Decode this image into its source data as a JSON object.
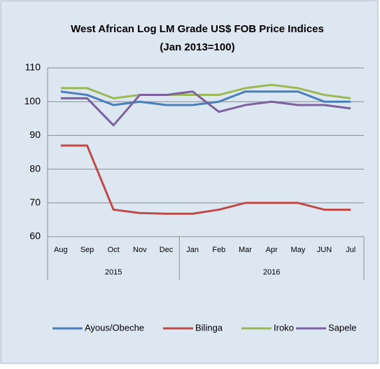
{
  "chart_data": {
    "type": "line",
    "title": "West African Log LM Grade US$ FOB Price Indices",
    "subtitle": "(Jan 2013=100)",
    "categories": [
      "Aug",
      "Sep",
      "Oct",
      "Nov",
      "Dec",
      "Jan",
      "Feb",
      "Mar",
      "Apr",
      "May",
      "JUN",
      "Jul"
    ],
    "category_groups": [
      {
        "label": "2015",
        "span": 5
      },
      {
        "label": "2016",
        "span": 7
      }
    ],
    "series": [
      {
        "name": "Ayous/Obeche",
        "color": "#4a7ebb",
        "values": [
          103,
          102,
          99,
          100,
          99,
          99,
          100,
          103,
          103,
          103,
          100,
          100
        ]
      },
      {
        "name": "Bilinga",
        "color": "#be4b48",
        "values": [
          87,
          87,
          68,
          67,
          66.8,
          66.8,
          68,
          70,
          70,
          70,
          68,
          68
        ]
      },
      {
        "name": "Iroko",
        "color": "#98b954",
        "values": [
          104,
          104,
          101,
          102,
          102,
          102,
          102,
          104,
          105,
          104,
          102,
          101
        ]
      },
      {
        "name": "Sapele",
        "color": "#7d60a0",
        "values": [
          101,
          101,
          93,
          102,
          102,
          103,
          97,
          99,
          100,
          99,
          99,
          98
        ]
      }
    ],
    "ylim": [
      60,
      110
    ],
    "yticks": [
      60,
      70,
      80,
      90,
      100,
      110
    ],
    "grid": true,
    "legend": "bottom"
  }
}
